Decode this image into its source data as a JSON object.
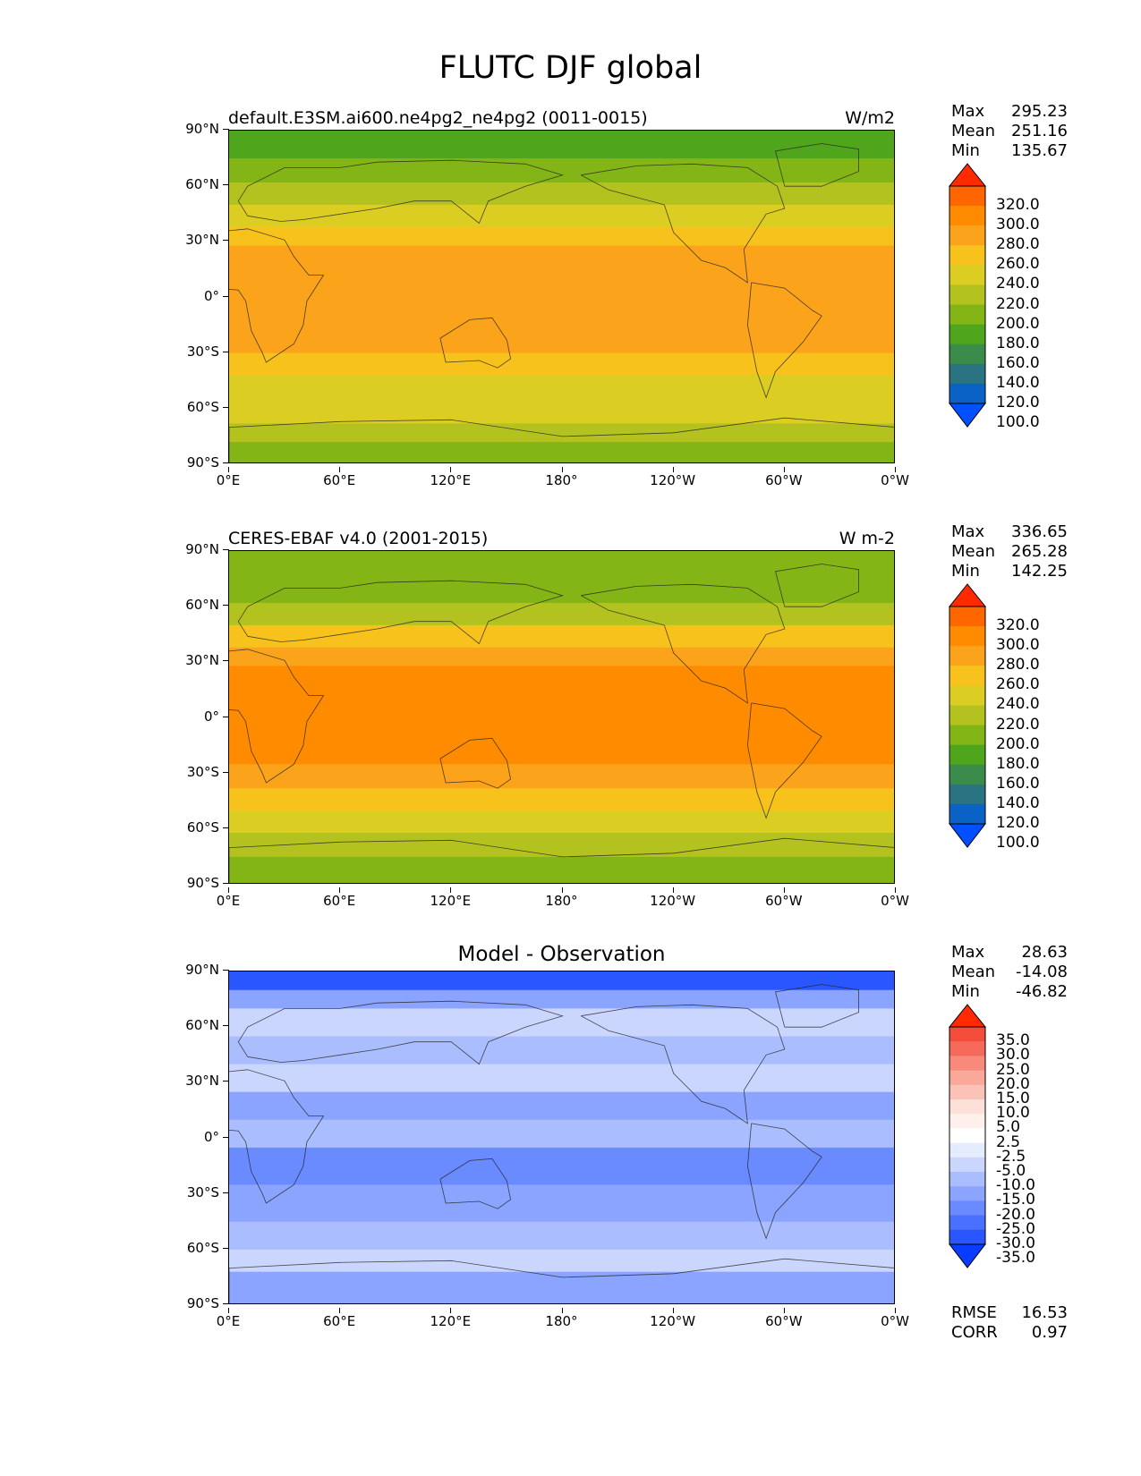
{
  "figure_title": "FLUTC DJF global",
  "chart_data": [
    {
      "type": "heatmap",
      "title": "default.E3SM.ai600.ne4pg2_ne4pg2 (0011-0015)",
      "units": "W/m2",
      "x_ticks": [
        "0°E",
        "60°E",
        "120°E",
        "180°",
        "120°W",
        "60°W",
        "0°W"
      ],
      "y_ticks": [
        "90°N",
        "60°N",
        "30°N",
        "0°",
        "30°S",
        "60°S",
        "90°S"
      ],
      "stats": {
        "max": "295.23",
        "mean": "251.16",
        "min": "135.67"
      },
      "colorbar": {
        "levels": [
          "320.0",
          "300.0",
          "280.0",
          "260.0",
          "240.0",
          "220.0",
          "200.0",
          "180.0",
          "160.0",
          "140.0",
          "120.0",
          "100.0"
        ],
        "colors": [
          "#ff2a00",
          "#ff6600",
          "#ff8c00",
          "#fba31b",
          "#f8c21c",
          "#dccd22",
          "#b4c21f",
          "#84b516",
          "#4fa51b",
          "#3b8c4a",
          "#2a7382",
          "#0a62c6",
          "#0050ff"
        ]
      },
      "zonal_bands": [
        {
          "lat": [
            90,
            75
          ],
          "value": 165
        },
        {
          "lat": [
            75,
            62
          ],
          "value": 185
        },
        {
          "lat": [
            62,
            50
          ],
          "value": 205
        },
        {
          "lat": [
            50,
            38
          ],
          "value": 225
        },
        {
          "lat": [
            38,
            28
          ],
          "value": 245
        },
        {
          "lat": [
            28,
            10
          ],
          "value": 265
        },
        {
          "lat": [
            10,
            -15
          ],
          "value": 268
        },
        {
          "lat": [
            -15,
            -30
          ],
          "value": 262
        },
        {
          "lat": [
            -30,
            -42
          ],
          "value": 248
        },
        {
          "lat": [
            -42,
            -55
          ],
          "value": 235
        },
        {
          "lat": [
            -55,
            -68
          ],
          "value": 222
        },
        {
          "lat": [
            -68,
            -78
          ],
          "value": 205
        },
        {
          "lat": [
            -78,
            -90
          ],
          "value": 185
        }
      ]
    },
    {
      "type": "heatmap",
      "title": "CERES-EBAF v4.0 (2001-2015)",
      "units": "W m-2",
      "x_ticks": [
        "0°E",
        "60°E",
        "120°E",
        "180°",
        "120°W",
        "60°W",
        "0°W"
      ],
      "y_ticks": [
        "90°N",
        "60°N",
        "30°N",
        "0°",
        "30°S",
        "60°S",
        "90°S"
      ],
      "stats": {
        "max": "336.65",
        "mean": "265.28",
        "min": "142.25"
      },
      "colorbar": {
        "levels": [
          "320.0",
          "300.0",
          "280.0",
          "260.0",
          "240.0",
          "220.0",
          "200.0",
          "180.0",
          "160.0",
          "140.0",
          "120.0",
          "100.0"
        ],
        "colors": [
          "#ff2a00",
          "#ff6600",
          "#ff8c00",
          "#fba31b",
          "#f8c21c",
          "#dccd22",
          "#b4c21f",
          "#84b516",
          "#4fa51b",
          "#3b8c4a",
          "#2a7382",
          "#0a62c6",
          "#0050ff"
        ]
      },
      "zonal_bands": [
        {
          "lat": [
            90,
            78
          ],
          "value": 185
        },
        {
          "lat": [
            78,
            62
          ],
          "value": 195
        },
        {
          "lat": [
            62,
            50
          ],
          "value": 215
        },
        {
          "lat": [
            50,
            38
          ],
          "value": 245
        },
        {
          "lat": [
            38,
            28
          ],
          "value": 265
        },
        {
          "lat": [
            28,
            10
          ],
          "value": 285
        },
        {
          "lat": [
            10,
            -25
          ],
          "value": 290
        },
        {
          "lat": [
            -25,
            -38
          ],
          "value": 275
        },
        {
          "lat": [
            -38,
            -50
          ],
          "value": 255
        },
        {
          "lat": [
            -50,
            -62
          ],
          "value": 235
        },
        {
          "lat": [
            -62,
            -75
          ],
          "value": 215
        },
        {
          "lat": [
            -75,
            -90
          ],
          "value": 195
        }
      ]
    },
    {
      "type": "heatmap",
      "title": "Model - Observation",
      "units": "",
      "x_ticks": [
        "0°E",
        "60°E",
        "120°E",
        "180°",
        "120°W",
        "60°W",
        "0°W"
      ],
      "y_ticks": [
        "90°N",
        "60°N",
        "30°N",
        "0°",
        "30°S",
        "60°S",
        "90°S"
      ],
      "stats": {
        "max": "28.63",
        "mean": "-14.08",
        "min": "-46.82"
      },
      "metrics": {
        "rmse": "16.53",
        "corr": "0.97"
      },
      "colorbar": {
        "levels": [
          "35.0",
          "30.0",
          "25.0",
          "20.0",
          "15.0",
          "10.0",
          "5.0",
          "2.5",
          "-2.5",
          "-5.0",
          "-10.0",
          "-15.0",
          "-20.0",
          "-25.0",
          "-30.0",
          "-35.0"
        ],
        "colors": [
          "#ff2a00",
          "#f44d3c",
          "#f56a5a",
          "#f78a7a",
          "#f9a89a",
          "#fbc3b8",
          "#fde0d8",
          "#fff0ec",
          "#ffffff",
          "#e6ecff",
          "#cbd6ff",
          "#aabdff",
          "#8aa4ff",
          "#6a8aff",
          "#4a70ff",
          "#2a56ff",
          "#0a3cff"
        ]
      },
      "zonal_bands": [
        {
          "lat": [
            90,
            80
          ],
          "value": -32
        },
        {
          "lat": [
            80,
            70
          ],
          "value": -18
        },
        {
          "lat": [
            70,
            55
          ],
          "value": -8
        },
        {
          "lat": [
            55,
            40
          ],
          "value": -12
        },
        {
          "lat": [
            40,
            25
          ],
          "value": -8
        },
        {
          "lat": [
            25,
            10
          ],
          "value": -20
        },
        {
          "lat": [
            10,
            -5
          ],
          "value": -12
        },
        {
          "lat": [
            -5,
            -25
          ],
          "value": -22
        },
        {
          "lat": [
            -25,
            -45
          ],
          "value": -18
        },
        {
          "lat": [
            -45,
            -60
          ],
          "value": -13
        },
        {
          "lat": [
            -60,
            -72
          ],
          "value": -6
        },
        {
          "lat": [
            -72,
            -90
          ],
          "value": -20
        }
      ]
    }
  ]
}
